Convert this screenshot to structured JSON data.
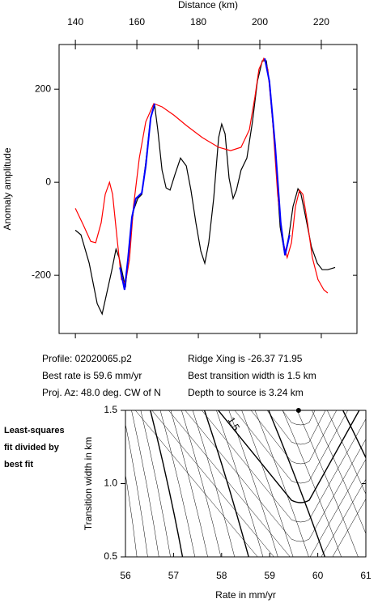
{
  "chart_data": [
    {
      "type": "line",
      "x_label": "Distance (km)",
      "y_label": "Anomaly amplitude",
      "xlim": [
        134.7,
        231.6
      ],
      "xticks": [
        140,
        160,
        180,
        200,
        220
      ],
      "ylim": [
        -325,
        296
      ],
      "yticks": [
        -200,
        0,
        200
      ],
      "series": [
        {
          "color": "#000000",
          "x": [
            140,
            141.8,
            144.5,
            147.1,
            148.7,
            151.8,
            153.2,
            154.2,
            156.3,
            157.6,
            158.9,
            160.3,
            161.6,
            162.9,
            164.5,
            165.8,
            166.8,
            168.2,
            169.5,
            170.8,
            172.4,
            174.2,
            176.1,
            177.6,
            179.2,
            180.8,
            182.1,
            183.4,
            185,
            186.6,
            187.6,
            188.7,
            190,
            191.3,
            192.4,
            193.9,
            195.8,
            197.6,
            199.2,
            200.8,
            202.1,
            203.4,
            205,
            206.6,
            208.2,
            209.5,
            210.8,
            212.4,
            213.4,
            215,
            216.8,
            218.7,
            220.3,
            222.1,
            224.5
          ],
          "values": [
            -103,
            -113,
            -174,
            -261,
            -283,
            -191,
            -144,
            -162,
            -226,
            -130,
            -61,
            -35,
            -26,
            43,
            139,
            165,
            113,
            26,
            -12,
            -17,
            17,
            52,
            35,
            -17,
            -87,
            -148,
            -174,
            -130,
            -35,
            96,
            125,
            104,
            9,
            -35,
            -17,
            26,
            52,
            130,
            217,
            261,
            261,
            200,
            61,
            -96,
            -157,
            -113,
            -52,
            -14,
            -26,
            -78,
            -139,
            -174,
            -188,
            -188,
            -183
          ]
        },
        {
          "color": "#ff0000",
          "x": [
            140,
            142.6,
            145,
            146.6,
            148.4,
            149.7,
            151.1,
            152.1,
            153.7,
            155,
            156.3,
            157.6,
            158.9,
            160.8,
            162.9,
            165.5,
            168.2,
            172.1,
            176.1,
            181.3,
            186.6,
            190.5,
            193.9,
            196.6,
            198.4,
            199.7,
            201.3,
            202.6,
            204.2,
            205.8,
            207.6,
            208.9,
            210.3,
            211.6,
            212.9,
            214,
            215.5,
            217.1,
            218.9,
            220.8,
            222.1
          ],
          "values": [
            -56,
            -92,
            -127,
            -130,
            -87,
            -26,
            0,
            -26,
            -130,
            -209,
            -217,
            -165,
            -52,
            52,
            130,
            169,
            162,
            144,
            122,
            96,
            75,
            68,
            75,
            113,
            183,
            243,
            266,
            243,
            130,
            -26,
            -130,
            -162,
            -130,
            -52,
            -17,
            -26,
            -87,
            -162,
            -209,
            -231,
            -238
          ]
        },
        {
          "color": "#0000ff",
          "x": [
            154.5,
            156,
            157.1,
            158.4,
            159.7,
            161.6,
            162.9,
            164.5,
            165.8,
            null,
            201.6,
            203.1,
            205,
            206.8,
            208.2,
            209.7
          ],
          "values": [
            -183,
            -231,
            -165,
            -75,
            -35,
            -23,
            35,
            139,
            169,
            null,
            266,
            217,
            78,
            -87,
            -157,
            -113
          ]
        }
      ]
    },
    {
      "type": "contour",
      "x_label": "Rate in mm/yr",
      "y_label": "Transition width in km",
      "xlim": [
        56,
        61
      ],
      "xticks": [
        56,
        57,
        58,
        59,
        60,
        61
      ],
      "ylim": [
        0.5,
        1.5
      ],
      "yticks": [
        0.5,
        {
          "value": 1,
          "label": "1.0"
        },
        1.5
      ],
      "contour_label": "1.5",
      "best_fit": {
        "x": 59.6,
        "y": 1.5
      }
    }
  ],
  "info": [
    [
      "Profile: 02020065.p2",
      "Best rate is 59.6 mm/yr",
      "Proj. Az: 48.0 deg. CW of N"
    ],
    [
      "Ridge Xing is -26.37 71.95",
      "Best transition width is 1.5 km",
      "Depth to source is  3.24 km"
    ]
  ],
  "caption": [
    "Least-squares",
    "fit divided by",
    "best fit"
  ]
}
